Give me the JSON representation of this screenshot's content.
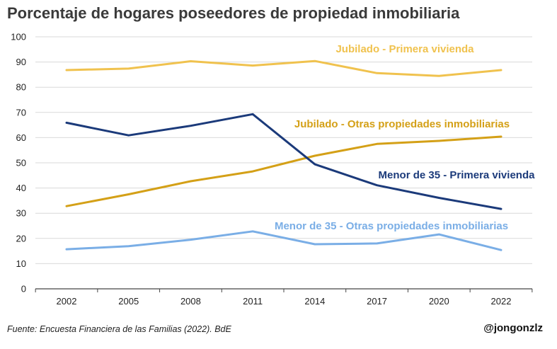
{
  "title": "Porcentaje de hogares poseedores de propiedad inmobiliaria",
  "footer": {
    "source": "Fuente: Encuesta Financiera de las Familias (2022). BdE",
    "handle": "@jongonzlz"
  },
  "chart_data": {
    "type": "line",
    "title": "Porcentaje de hogares poseedores de propiedad inmobiliaria",
    "xlabel": "",
    "ylabel": "",
    "ylim": [
      0,
      100
    ],
    "yticks": [
      "0",
      "10",
      "20",
      "30",
      "40",
      "50",
      "60",
      "70",
      "80",
      "90",
      "100"
    ],
    "grid": true,
    "legend": "inline labels",
    "categories": [
      "2002",
      "2005",
      "2008",
      "2011",
      "2014",
      "2017",
      "2020",
      "2022"
    ],
    "series": [
      {
        "name": "Jubilado - Primera vivienda",
        "color": "#f0c24e",
        "values": [
          86.8,
          87.4,
          90.3,
          88.6,
          90.4,
          85.6,
          84.5,
          86.8
        ]
      },
      {
        "name": "Jubilado - Otras propiedades inmobiliarias",
        "color": "#d4a017",
        "values": [
          32.8,
          37.5,
          42.7,
          46.6,
          52.8,
          57.5,
          58.7,
          60.4
        ]
      },
      {
        "name": "Menor de 35 - Primera vivienda",
        "color": "#1b3a7a",
        "values": [
          65.9,
          60.9,
          64.7,
          69.3,
          49.4,
          41.1,
          36.1,
          31.7
        ]
      },
      {
        "name": "Menor de 35 - Otras propiedades inmobiliarias",
        "color": "#7aaee6",
        "values": [
          15.7,
          16.9,
          19.5,
          22.8,
          17.7,
          18.0,
          21.6,
          15.4
        ]
      }
    ]
  }
}
